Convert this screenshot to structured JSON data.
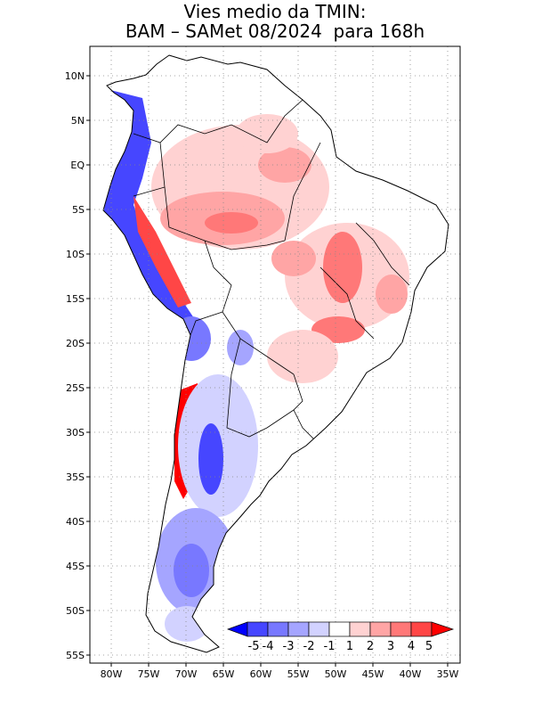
{
  "title": {
    "line1": "Vies medio da TMIN:",
    "line2": "BAM – SAMet 08/2024  para 168h"
  },
  "axes": {
    "lat_labels": [
      "10N",
      "5N",
      "EQ",
      "5S",
      "10S",
      "15S",
      "20S",
      "25S",
      "30S",
      "35S",
      "40S",
      "45S",
      "50S",
      "55S"
    ],
    "lon_labels": [
      "80W",
      "75W",
      "70W",
      "65W",
      "60W",
      "55W",
      "50W",
      "45W",
      "40W",
      "35W"
    ]
  },
  "colorbar": {
    "labels": [
      "-5",
      "-4",
      "-3",
      "-2",
      "-1",
      "1",
      "2",
      "3",
      "4",
      "5"
    ],
    "colors": [
      "#0000ff",
      "#4646ff",
      "#7878ff",
      "#a5a5ff",
      "#d2d2ff",
      "#ffffff",
      "#ffd2d2",
      "#ffa5a5",
      "#ff7878",
      "#ff4646",
      "#ff0000"
    ]
  },
  "chart_data": {
    "type": "heatmap",
    "variable": "Vies medio da TMIN",
    "model": "BAM",
    "reference": "SAMet",
    "period": "08/2024",
    "lead": "168h",
    "lon_range": [
      -83,
      -34
    ],
    "lat_range": [
      -56,
      13
    ],
    "levels": [
      -5,
      -4,
      -3,
      -2,
      -1,
      1,
      2,
      3,
      4,
      5
    ],
    "regions": [
      {
        "name": "amazon-warm-bias",
        "lon": -60,
        "lat": -6,
        "bias": 3
      },
      {
        "name": "north-warm-bias",
        "lon": -55,
        "lat": 1,
        "bias": 2
      },
      {
        "name": "central-brazil-warm-bias",
        "lon": -47,
        "lat": -12,
        "bias": 4
      },
      {
        "name": "southeast-brazil-warm-bias",
        "lon": -50,
        "lat": -18,
        "bias": 4
      },
      {
        "name": "andes-west-cold-bias",
        "lon": -78,
        "lat": -5,
        "bias": -4
      },
      {
        "name": "argentina-cold-bias",
        "lon": -66,
        "lat": -33,
        "bias": -4
      },
      {
        "name": "chile-warm-bias",
        "lon": -71,
        "lat": -31,
        "bias": 5
      },
      {
        "name": "patagonia-cold-bias",
        "lon": -69,
        "lat": -46,
        "bias": -3
      }
    ]
  }
}
